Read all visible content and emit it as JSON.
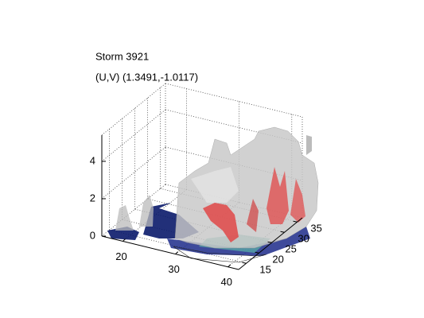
{
  "chart_data": {
    "type": "isosurface3d",
    "title": "Storm 3921",
    "subtitle": "(U,V) (1.3491,-1.0117)",
    "xlim": [
      16,
      42
    ],
    "ylim": [
      12,
      37
    ],
    "zlim": [
      0,
      5.4
    ],
    "xticks": [
      20,
      30,
      40
    ],
    "yticks": [
      15,
      20,
      25,
      30,
      35
    ],
    "zticks": [
      0,
      2,
      4
    ],
    "grid": true
  }
}
